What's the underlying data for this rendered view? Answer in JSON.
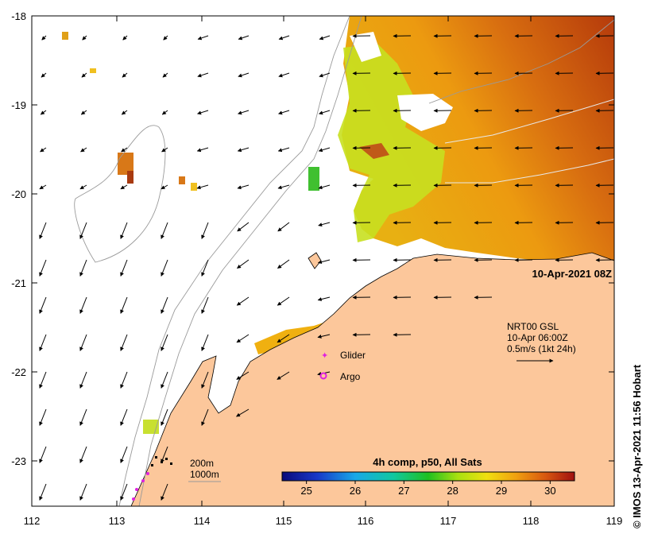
{
  "map": {
    "timestamp": "10-Apr-2021 08Z",
    "lat_labels": [
      "-18",
      "-19",
      "-20",
      "-21",
      "-22",
      "-23"
    ],
    "lon_labels": [
      "112",
      "113",
      "114",
      "115",
      "116",
      "117",
      "118",
      "119"
    ],
    "lon_range": [
      112,
      119
    ],
    "lat_range": [
      -23.5,
      -18
    ],
    "current_legend": {
      "line1": "NRT00 GSL",
      "line2": "10-Apr 06:00Z",
      "line3": "0.5m/s (1kt 24h)"
    },
    "glider_label": "Glider",
    "argo_label": "Argo",
    "isobath_labels": [
      "200m",
      "1000m"
    ],
    "colorbar": {
      "title": "4h comp, p50, All Sats",
      "ticks": [
        "25",
        "26",
        "27",
        "28",
        "29",
        "30"
      ],
      "range": [
        24.5,
        30.5
      ]
    },
    "credit": "© IMOS 13-Apr-2021 11:56 Hobart",
    "colors": {
      "land": "#FCC79B",
      "glider": "#E020E0",
      "argo": "#E020E0"
    }
  }
}
